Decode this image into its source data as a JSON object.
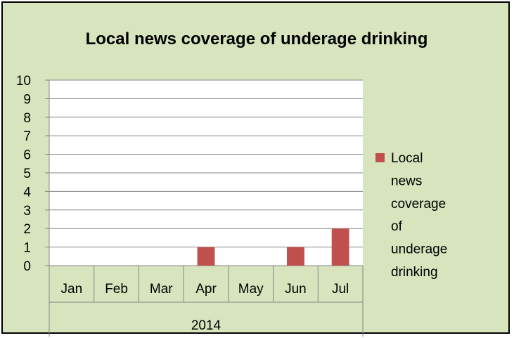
{
  "chart_data": {
    "type": "bar",
    "title": "Local news coverage of underage drinking",
    "categories": [
      "Jan",
      "Feb",
      "Mar",
      "Apr",
      "May",
      "Jun",
      "Jul"
    ],
    "group_label": "2014",
    "series": [
      {
        "name": "Local news coverage of underage drinking",
        "values": [
          0,
          0,
          0,
          1,
          0,
          1,
          2
        ],
        "color": "#c0504d"
      }
    ],
    "ylim": [
      0,
      10
    ],
    "yticks": [
      "0",
      "1",
      "2",
      "3",
      "4",
      "5",
      "6",
      "7",
      "8",
      "9",
      "10"
    ],
    "grid": true,
    "legend_position": "right",
    "legend_lines": [
      "Local",
      "news",
      "coverage",
      "of",
      "underage",
      "drinking"
    ],
    "colors": {
      "chart_background": "#d7e4bd",
      "plot_background": "#ffffff",
      "gridline": "#868686",
      "bar": "#c0504d"
    }
  }
}
